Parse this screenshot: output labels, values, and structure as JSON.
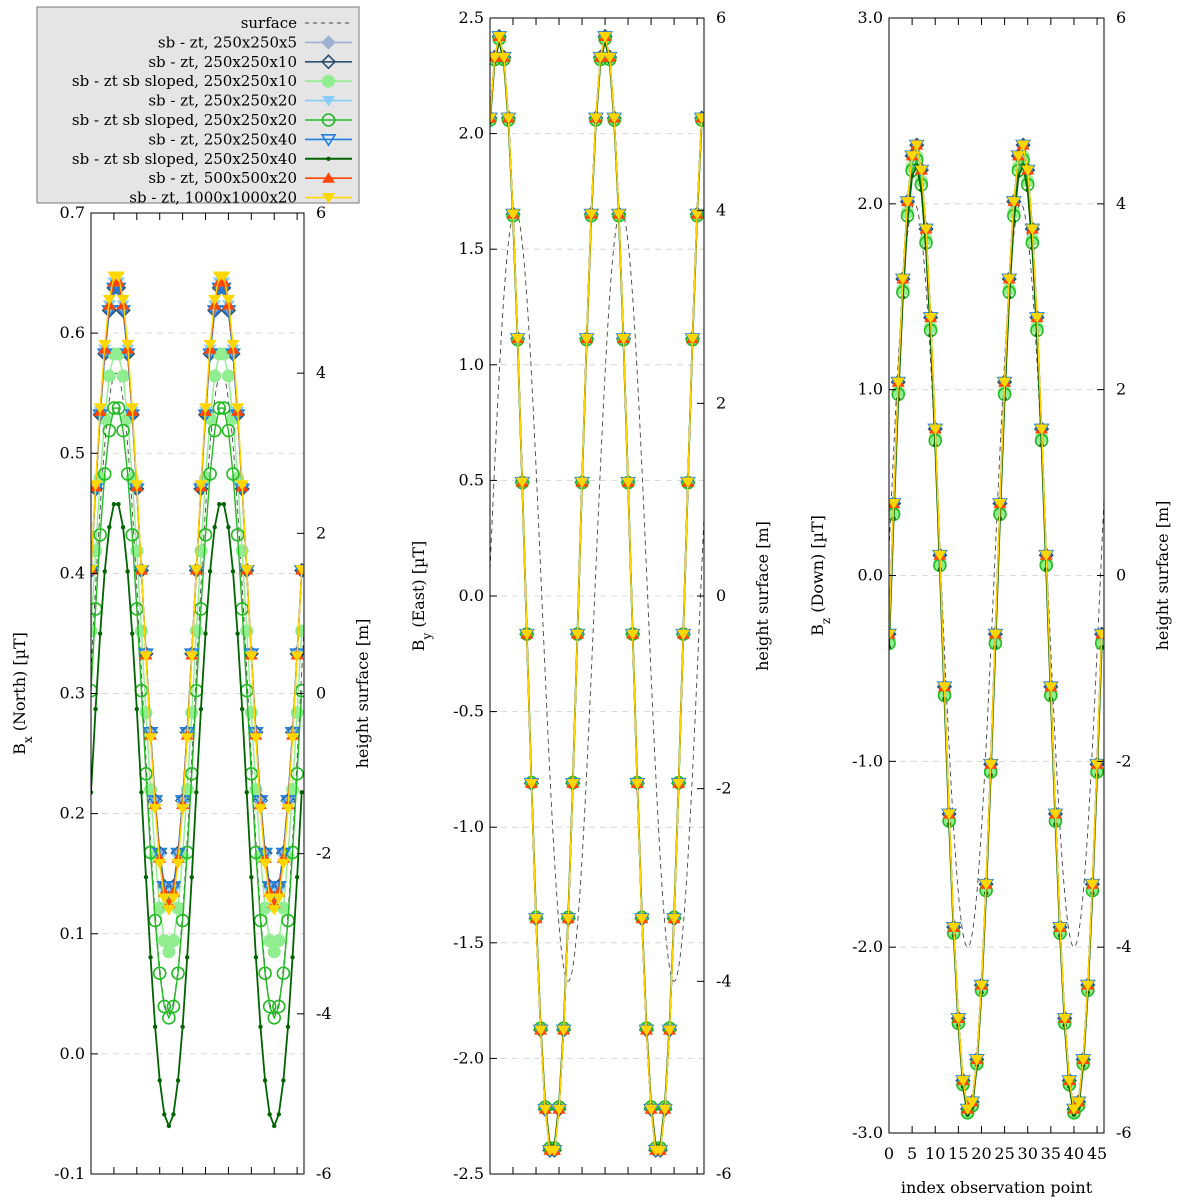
{
  "chart_data": {
    "type": "line",
    "x_label": "index observation point",
    "x_ticks": [
      "0",
      "5",
      "10",
      "15",
      "20",
      "25",
      "30",
      "35",
      "40",
      "45"
    ],
    "x_range": [
      0,
      46.5
    ],
    "right_axis": {
      "label": "height surface [m]",
      "range": [
        -6,
        6
      ],
      "ticks": [
        "-6",
        "-4",
        "-2",
        "0",
        "2",
        "4",
        "6"
      ]
    },
    "legend": {
      "placement": "top-left",
      "entries": [
        {
          "label": "surface",
          "color": "#444444",
          "style": "dashed",
          "marker": "none"
        },
        {
          "label": "sb - zt, 250x250x5",
          "color": "#9fb1d3",
          "marker": "diamond-filled"
        },
        {
          "label": "sb - zt, 250x250x10",
          "color": "#2a4e6e",
          "marker": "diamond-open"
        },
        {
          "label": "sb - zt sb sloped, 250x250x10",
          "color": "#90ee90",
          "marker": "circle-filled"
        },
        {
          "label": "sb - zt, 250x250x20",
          "color": "#87cefa",
          "marker": "triangle-down-filled"
        },
        {
          "label": "sb - zt sb sloped, 250x250x20",
          "color": "#22bb22",
          "marker": "circle-open"
        },
        {
          "label": "sb - zt, 250x250x40",
          "color": "#1e7fe0",
          "marker": "triangle-down-open"
        },
        {
          "label": "sb - zt sb sloped, 250x250x40",
          "color": "#006400",
          "marker": "dot"
        },
        {
          "label": "sb - zt, 500x500x20",
          "color": "#ff4500",
          "marker": "triangle-up-filled"
        },
        {
          "label": "sb - zt, 1000x1000x20",
          "color": "#ffd700",
          "marker": "triangle-down-filled"
        }
      ]
    },
    "panels": [
      {
        "ylabel_main": "B",
        "ylabel_sub": "x",
        "ylabel_rest": " (North) [µT]",
        "ylim": [
          -0.1,
          0.7
        ],
        "y_ticks": [
          "-0.1",
          "0.0",
          "0.1",
          "0.2",
          "0.3",
          "0.4",
          "0.5",
          "0.6",
          "0.7"
        ],
        "main_phase": 5.5,
        "surface_phase": 5.5,
        "series": [
          {
            "name": "sb - zt, 250x250x5",
            "mean": 0.385,
            "amp": 0.255
          },
          {
            "name": "sb - zt, 250x250x10",
            "mean": 0.385,
            "amp": 0.255
          },
          {
            "name": "sb - zt sb sloped, 250x250x10",
            "mean": 0.335,
            "amp": 0.25
          },
          {
            "name": "sb - zt, 250x250x20",
            "mean": 0.385,
            "amp": 0.26
          },
          {
            "name": "sb - zt sb sloped, 250x250x20",
            "mean": 0.285,
            "amp": 0.255
          },
          {
            "name": "sb - zt, 250x250x40",
            "mean": 0.385,
            "amp": 0.255
          },
          {
            "name": "sb - zt sb sloped, 250x250x40",
            "mean": 0.2,
            "amp": 0.26
          },
          {
            "name": "sb - zt, 500x500x20",
            "mean": 0.385,
            "amp": 0.26
          },
          {
            "name": "sb - zt, 1000x1000x20",
            "mean": 0.385,
            "amp": 0.265
          }
        ]
      },
      {
        "ylabel_main": "B",
        "ylabel_sub": "y",
        "ylabel_rest": " (East) [µT]",
        "ylim": [
          -2.5,
          2.5
        ],
        "y_ticks": [
          "-2.5",
          "-2.0",
          "-1.5",
          "-1.0",
          "-0.5",
          "0.0",
          "0.5",
          "1.0",
          "1.5",
          "2.0",
          "2.5"
        ],
        "main_phase": 2.0,
        "surface_phase": 5.5,
        "series": [
          {
            "name": "sb - zt, 250x250x5",
            "mean": 0.0,
            "amp": 2.42
          },
          {
            "name": "sb - zt, 250x250x10",
            "mean": 0.0,
            "amp": 2.42
          },
          {
            "name": "sb - zt sb sloped, 250x250x10",
            "mean": 0.0,
            "amp": 2.41
          },
          {
            "name": "sb - zt, 250x250x20",
            "mean": 0.0,
            "amp": 2.42
          },
          {
            "name": "sb - zt sb sloped, 250x250x20",
            "mean": 0.0,
            "amp": 2.41
          },
          {
            "name": "sb - zt, 250x250x40",
            "mean": 0.0,
            "amp": 2.42
          },
          {
            "name": "sb - zt sb sloped, 250x250x40",
            "mean": 0.0,
            "amp": 2.4
          },
          {
            "name": "sb - zt, 500x500x20",
            "mean": 0.0,
            "amp": 2.42
          },
          {
            "name": "sb - zt, 1000x1000x20",
            "mean": 0.0,
            "amp": 2.42
          }
        ]
      },
      {
        "ylabel_main": "B",
        "ylabel_sub": "z",
        "ylabel_rest": " (Down) [µT]",
        "ylim": [
          -3.0,
          3.0
        ],
        "y_ticks": [
          "-3.0",
          "-2.0",
          "-1.0",
          "0.0",
          "1.0",
          "2.0",
          "3.0"
        ],
        "main_phase": 5.8,
        "surface_phase": 5.5,
        "series": [
          {
            "name": "sb - zt, 250x250x5",
            "mean": -0.28,
            "amp": 2.6
          },
          {
            "name": "sb - zt, 250x250x10",
            "mean": -0.28,
            "amp": 2.6
          },
          {
            "name": "sb - zt sb sloped, 250x250x10",
            "mean": -0.32,
            "amp": 2.58
          },
          {
            "name": "sb - zt, 250x250x20",
            "mean": -0.28,
            "amp": 2.6
          },
          {
            "name": "sb - zt sb sloped, 250x250x20",
            "mean": -0.33,
            "amp": 2.57
          },
          {
            "name": "sb - zt, 250x250x40",
            "mean": -0.28,
            "amp": 2.6
          },
          {
            "name": "sb - zt sb sloped, 250x250x40",
            "mean": -0.35,
            "amp": 2.56
          },
          {
            "name": "sb - zt, 500x500x20",
            "mean": -0.28,
            "amp": 2.6
          },
          {
            "name": "sb - zt, 1000x1000x20",
            "mean": -0.28,
            "amp": 2.6
          }
        ]
      }
    ],
    "surface": {
      "mean": 0.0,
      "amp": 4.0,
      "period": 23
    },
    "series_period": 23,
    "n_points": 47
  }
}
